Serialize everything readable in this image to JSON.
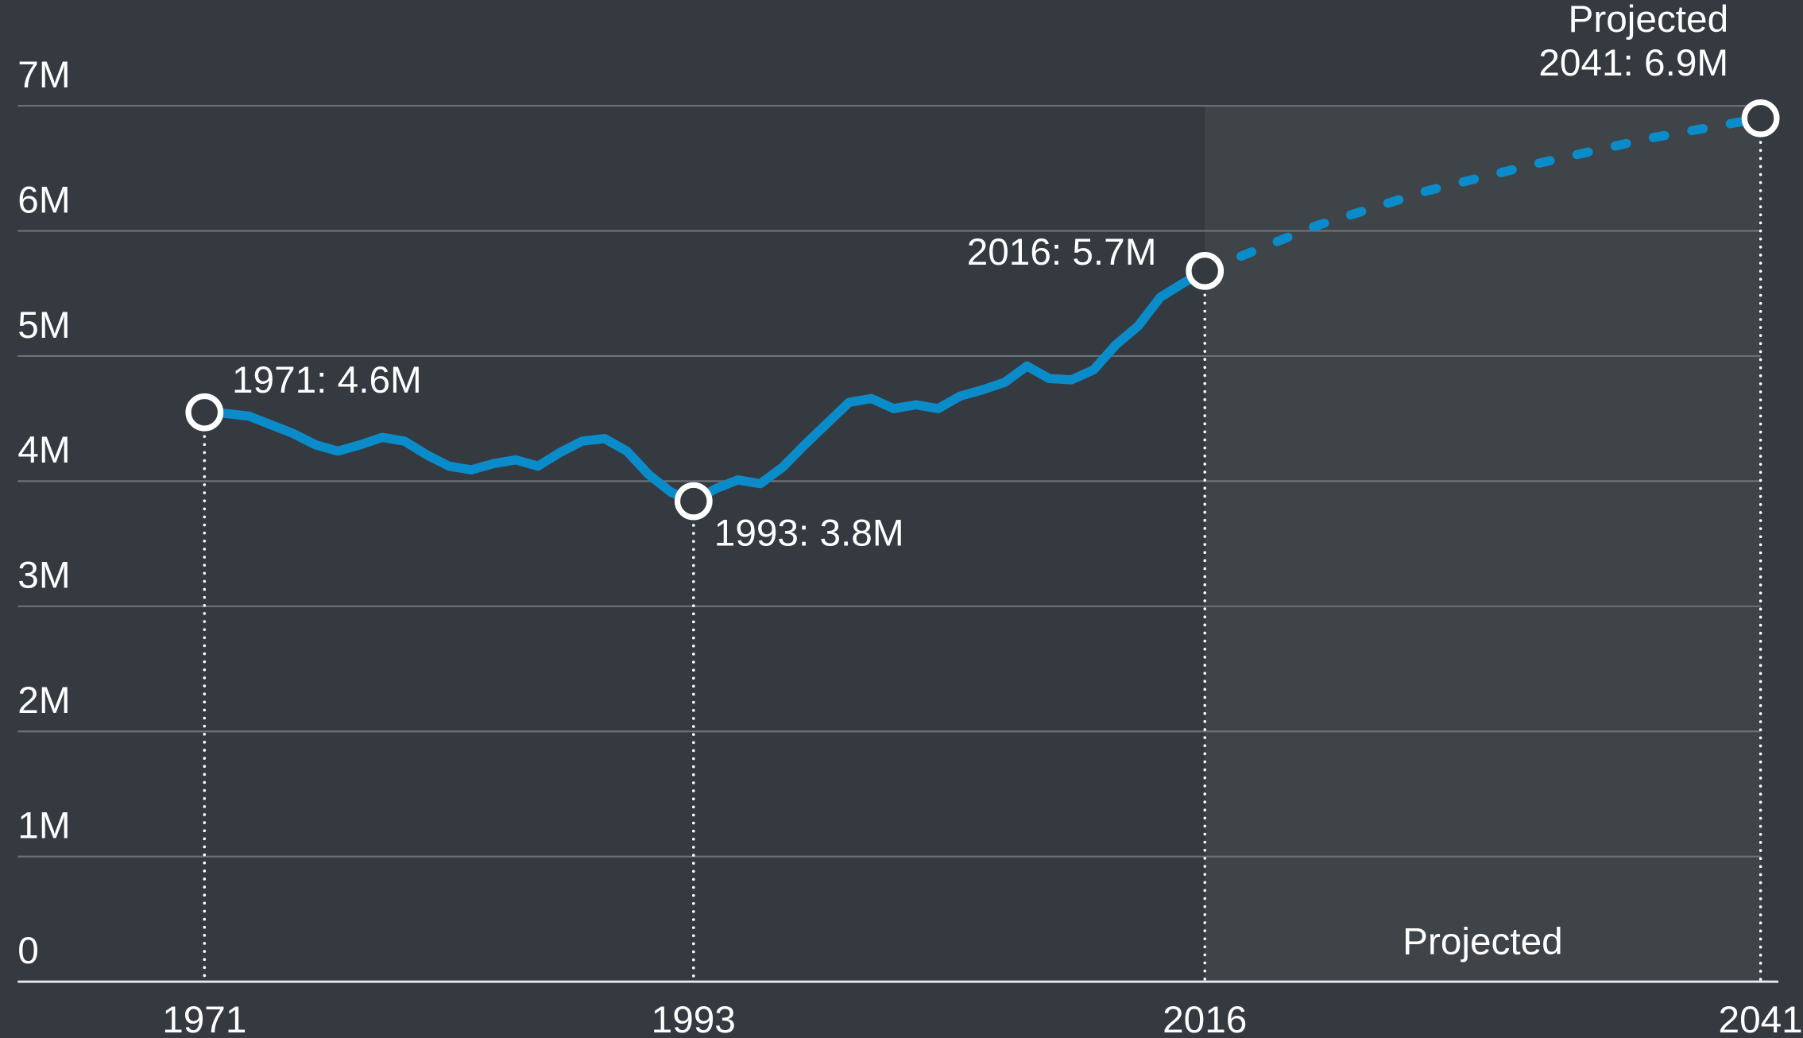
{
  "chart_data": {
    "type": "line",
    "xlim": [
      1962.6,
      2041.8
    ],
    "ylim": [
      0,
      7
    ],
    "xticks": [
      1971,
      1993,
      2016,
      2041
    ],
    "yticks": [
      {
        "value": 0,
        "label": "0"
      },
      {
        "value": 1,
        "label": "1M"
      },
      {
        "value": 2,
        "label": "2M"
      },
      {
        "value": 3,
        "label": "3M"
      },
      {
        "value": 4,
        "label": "4M"
      },
      {
        "value": 5,
        "label": "5M"
      },
      {
        "value": 6,
        "label": "6M"
      },
      {
        "value": 7,
        "label": "7M"
      }
    ],
    "grid": true,
    "series": [
      {
        "color": "#0a8ccb",
        "dashed": false,
        "x": [
          1971,
          1972,
          1973,
          1974,
          1975,
          1976,
          1977,
          1978,
          1979,
          1980,
          1981,
          1982,
          1983,
          1984,
          1985,
          1986,
          1987,
          1988,
          1989,
          1990,
          1991,
          1992,
          1993,
          1994,
          1995,
          1996,
          1997,
          1998,
          1999,
          2000,
          2001,
          2002,
          2003,
          2004,
          2005,
          2006,
          2007,
          2008,
          2009,
          2010,
          2011,
          2012,
          2013,
          2014,
          2015,
          2016
        ],
        "values": [
          4.55,
          4.54,
          4.52,
          4.45,
          4.38,
          4.29,
          4.24,
          4.29,
          4.35,
          4.32,
          4.21,
          4.12,
          4.09,
          4.14,
          4.17,
          4.12,
          4.23,
          4.32,
          4.34,
          4.24,
          4.05,
          3.91,
          3.84,
          3.94,
          4.01,
          3.98,
          4.11,
          4.29,
          4.46,
          4.63,
          4.66,
          4.58,
          4.61,
          4.58,
          4.68,
          4.73,
          4.79,
          4.92,
          4.82,
          4.81,
          4.89,
          5.09,
          5.24,
          5.47,
          5.58,
          5.68
        ]
      },
      {
        "color": "#0a8ccb",
        "dashed": true,
        "x": [
          2016,
          2021,
          2026,
          2031,
          2036,
          2041
        ],
        "values": [
          5.68,
          6.04,
          6.32,
          6.54,
          6.74,
          6.9
        ]
      }
    ],
    "projected_region": {
      "label": "Projected",
      "start": 2016,
      "end": 2041,
      "color": "#3f4449"
    },
    "annotations": [
      {
        "x": 1971,
        "value": 4.55,
        "label": [
          "1971: 4.6M"
        ]
      },
      {
        "x": 1993,
        "value": 3.84,
        "label": [
          "1993: 3.8M"
        ]
      },
      {
        "x": 2016,
        "value": 5.68,
        "label": [
          "2016: 5.7M"
        ]
      },
      {
        "x": 2041,
        "value": 6.9,
        "label": [
          "Projected",
          "2041: 6.9M"
        ]
      }
    ]
  }
}
